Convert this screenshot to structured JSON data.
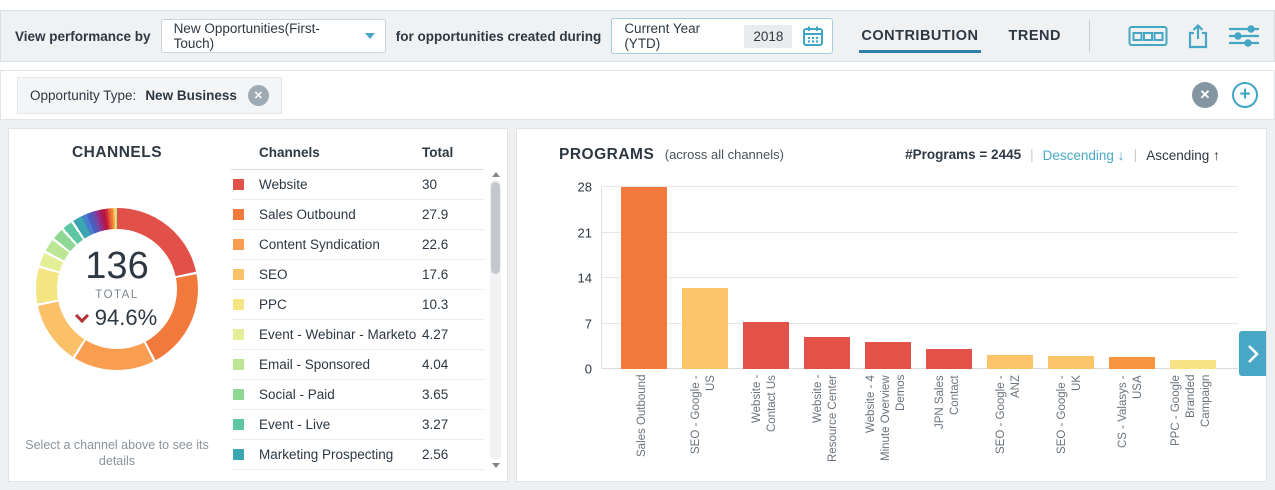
{
  "topbar": {
    "view_by_label": "View performance by",
    "view_by_value": "New Opportunities(First-Touch)",
    "during_label": "for opportunities created during",
    "date_range": "Current Year (YTD)",
    "date_year": "2018",
    "tabs": [
      {
        "label": "CONTRIBUTION",
        "active": true
      },
      {
        "label": "TREND",
        "active": false
      }
    ],
    "icons": [
      "calendar-icon",
      "boards-icon",
      "export-icon",
      "filter-settings-icon"
    ]
  },
  "filterbar": {
    "chip_label": "Opportunity Type:",
    "chip_value": "New Business",
    "icons": [
      "remove-filter-icon",
      "clear-all-filters-icon",
      "add-filter-icon"
    ]
  },
  "channels": {
    "title": "CHANNELS",
    "donut_center": {
      "total": "136",
      "label": "TOTAL",
      "percent": "94.6%",
      "trend": "down"
    },
    "table": {
      "headers": [
        "Channels",
        "Total"
      ],
      "rows": [
        {
          "name": "Website",
          "total": "30",
          "color": "#e2504a"
        },
        {
          "name": "Sales Outbound",
          "total": "27.9",
          "color": "#f1793b"
        },
        {
          "name": "Content Syndication",
          "total": "22.6",
          "color": "#f99d51"
        },
        {
          "name": "SEO",
          "total": "17.6",
          "color": "#fbc168"
        },
        {
          "name": "PPC",
          "total": "10.3",
          "color": "#f4e482"
        },
        {
          "name": "Event - Webinar - Marketo",
          "total": "4.27",
          "color": "#e4ee96"
        },
        {
          "name": "Email - Sponsored",
          "total": "4.04",
          "color": "#bce594"
        },
        {
          "name": "Social - Paid",
          "total": "3.65",
          "color": "#8ed795"
        },
        {
          "name": "Event - Live",
          "total": "3.27",
          "color": "#5cc7a2"
        },
        {
          "name": "Marketing Prospecting",
          "total": "2.56",
          "color": "#3ba6b0"
        }
      ]
    },
    "footnote": "Select a channel above to see its details"
  },
  "programs": {
    "title": "PROGRAMS",
    "subtitle": "(across all channels)",
    "count_label": "#Programs = 2445",
    "sort_desc": "Descending",
    "sort_desc_arrow": "↓",
    "sort_asc": "Ascending",
    "sort_asc_arrow": "↑"
  },
  "accent_colors": {
    "teal": "#45a7c4",
    "active_tab_underline": "#2f81ad",
    "negative_red": "#b23238",
    "text_dark": "#2e3842",
    "text_gray": "#808a92"
  },
  "chart_data": [
    {
      "type": "pie",
      "subtype": "donut",
      "title": "CHANNELS",
      "center": {
        "total": 136,
        "label": "TOTAL",
        "percent": "94.6%",
        "trend": "down"
      },
      "segments": [
        {
          "label": "Website",
          "value": 30,
          "color": "#e2504a"
        },
        {
          "label": "Sales Outbound",
          "value": 27.9,
          "color": "#f1793b"
        },
        {
          "label": "Content Syndication",
          "value": 22.6,
          "color": "#f99d51"
        },
        {
          "label": "SEO",
          "value": 17.6,
          "color": "#fbc168"
        },
        {
          "label": "PPC",
          "value": 10.3,
          "color": "#f4e482"
        },
        {
          "label": "Event - Webinar - Marketo",
          "value": 4.27,
          "color": "#e4ee96"
        },
        {
          "label": "Email - Sponsored",
          "value": 4.04,
          "color": "#bce594"
        },
        {
          "label": "Social - Paid",
          "value": 3.65,
          "color": "#8ed795"
        },
        {
          "label": "Event - Live",
          "value": 3.27,
          "color": "#5cc7a2"
        },
        {
          "label": "Marketing Prospecting",
          "value": 2.56,
          "color": "#3ba6b0"
        },
        {
          "label": "",
          "value": 1.5,
          "color": "#4a7fd0"
        },
        {
          "label": "",
          "value": 1.3,
          "color": "#4a5ec2"
        },
        {
          "label": "",
          "value": 1.1,
          "color": "#6d4ba8"
        },
        {
          "label": "",
          "value": 1.0,
          "color": "#92308e"
        },
        {
          "label": "",
          "value": 0.9,
          "color": "#a81d60"
        },
        {
          "label": "",
          "value": 0.8,
          "color": "#b3173c"
        },
        {
          "label": "",
          "value": 0.75,
          "color": "#d32f3c"
        },
        {
          "label": "",
          "value": 0.7,
          "color": "#e8603a"
        },
        {
          "label": "",
          "value": 0.6,
          "color": "#f08030"
        },
        {
          "label": "",
          "value": 0.5,
          "color": "#f5b050"
        },
        {
          "label": "",
          "value": 0.36,
          "color": "#f0e080"
        },
        {
          "label": "",
          "value": 0.3,
          "color": "#b8e090"
        }
      ]
    },
    {
      "type": "bar",
      "title": "PROGRAMS (across all channels)",
      "categories": [
        "Sales Outbound",
        "SEO - Google - US",
        "Website - Contact Us",
        "Website - Resource Center",
        "Website - 4 Minute Overview Demos",
        "JPN Sales Contact",
        "SEO - Google - ANZ",
        "SEO - Google - UK",
        "CS - Valasys - USA",
        "PPC - Google Branded Campaign"
      ],
      "label_lines": [
        [
          "Sales Outbound"
        ],
        [
          "SEO - Google -",
          "US"
        ],
        [
          "Website -",
          "Contact Us"
        ],
        [
          "Website -",
          "Resource Center"
        ],
        [
          "Website - 4",
          "Minute Overview",
          "Demos"
        ],
        [
          "JPN Sales",
          "Contact"
        ],
        [
          "SEO - Google -",
          "ANZ"
        ],
        [
          "SEO - Google -",
          "UK"
        ],
        [
          "CS - Valasys -",
          "USA"
        ],
        [
          "PPC - Google",
          "Branded",
          "Campaign"
        ]
      ],
      "values": [
        28,
        12.5,
        7.3,
        5,
        4.2,
        3.1,
        2.2,
        2,
        1.9,
        1.4
      ],
      "colors": [
        "#f1793b",
        "#fcc468",
        "#e25249",
        "#e25249",
        "#e25249",
        "#e25249",
        "#fcc468",
        "#fcc468",
        "#f79440",
        "#f8e387"
      ],
      "xlabel": "",
      "ylabel": "",
      "ylim": [
        0,
        28
      ],
      "yticks": [
        0,
        7,
        14,
        21,
        28
      ],
      "grid": true,
      "legend": false
    }
  ]
}
